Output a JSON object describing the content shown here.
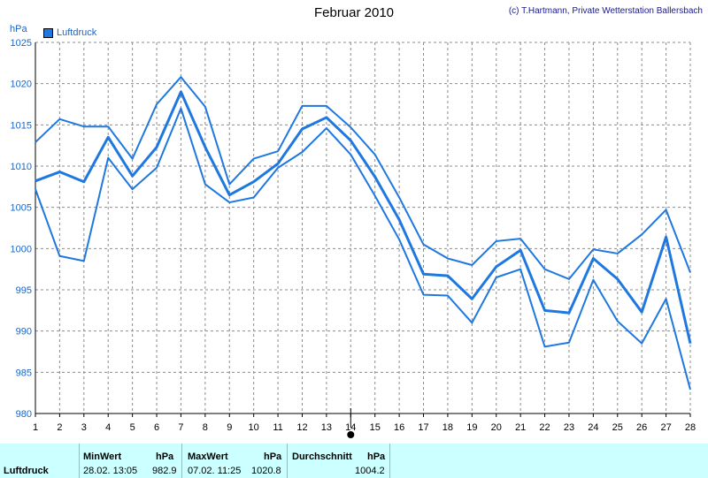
{
  "header": {
    "title": "Februar 2010",
    "credit": "(c) T.Hartmann, Private Wetterstation Ballersbach",
    "unit": "hPa",
    "legend": "Luftdruck"
  },
  "chart_data": {
    "type": "line",
    "title": "Februar 2010",
    "ylabel": "hPa",
    "ylim": [
      980,
      1025
    ],
    "yticks": [
      980,
      985,
      990,
      995,
      1000,
      1005,
      1010,
      1015,
      1020,
      1025
    ],
    "x": [
      1,
      2,
      3,
      4,
      5,
      6,
      7,
      8,
      9,
      10,
      11,
      12,
      13,
      14,
      15,
      16,
      17,
      18,
      19,
      20,
      21,
      22,
      23,
      24,
      25,
      26,
      27,
      28
    ],
    "series": [
      {
        "name": "Luftdruck",
        "role": "mean",
        "values": [
          1008.2,
          1009.3,
          1008.1,
          1013.5,
          1008.8,
          1012.3,
          1019.0,
          1012.3,
          1006.5,
          1008.1,
          1010.3,
          1014.5,
          1015.9,
          1013.1,
          1008.7,
          1003.5,
          996.9,
          996.7,
          993.9,
          997.8,
          999.8,
          992.5,
          992.2,
          998.8,
          996.3,
          992.3,
          1001.4,
          988.5
        ]
      },
      {
        "role": "max",
        "values": [
          1012.9,
          1015.7,
          1014.8,
          1014.8,
          1010.9,
          1017.5,
          1020.8,
          1017.2,
          1007.8,
          1010.9,
          1011.8,
          1017.3,
          1017.3,
          1014.7,
          1011.4,
          1006.2,
          1000.5,
          998.8,
          998.0,
          1000.9,
          1001.2,
          997.5,
          996.3,
          999.9,
          999.4,
          1001.7,
          1004.7,
          997.1
        ]
      },
      {
        "role": "min",
        "values": [
          1007.2,
          999.1,
          998.5,
          1011.0,
          1007.2,
          1009.8,
          1017.0,
          1007.8,
          1005.6,
          1006.2,
          1009.8,
          1011.7,
          1014.6,
          1011.4,
          1006.4,
          1001.1,
          994.4,
          994.3,
          991.0,
          996.5,
          997.5,
          988.1,
          988.6,
          996.2,
          991.2,
          988.5,
          993.9,
          982.9
        ]
      }
    ],
    "grid": true,
    "legend_position": "top-left",
    "marker_x": 14,
    "colors": {
      "line": "#1e78e0",
      "grid": "#8c8c8c"
    }
  },
  "stats": {
    "row_label": "Luftdruck",
    "min": {
      "label": "MinWert",
      "unit": "hPa",
      "time": "28.02.  13:05",
      "value": "982.9"
    },
    "max": {
      "label": "MaxWert",
      "unit": "hPa",
      "time": "07.02.  11:25",
      "value": "1020.8"
    },
    "avg": {
      "label": "Durchschnitt",
      "unit": "hPa",
      "value": "1004.2"
    }
  }
}
